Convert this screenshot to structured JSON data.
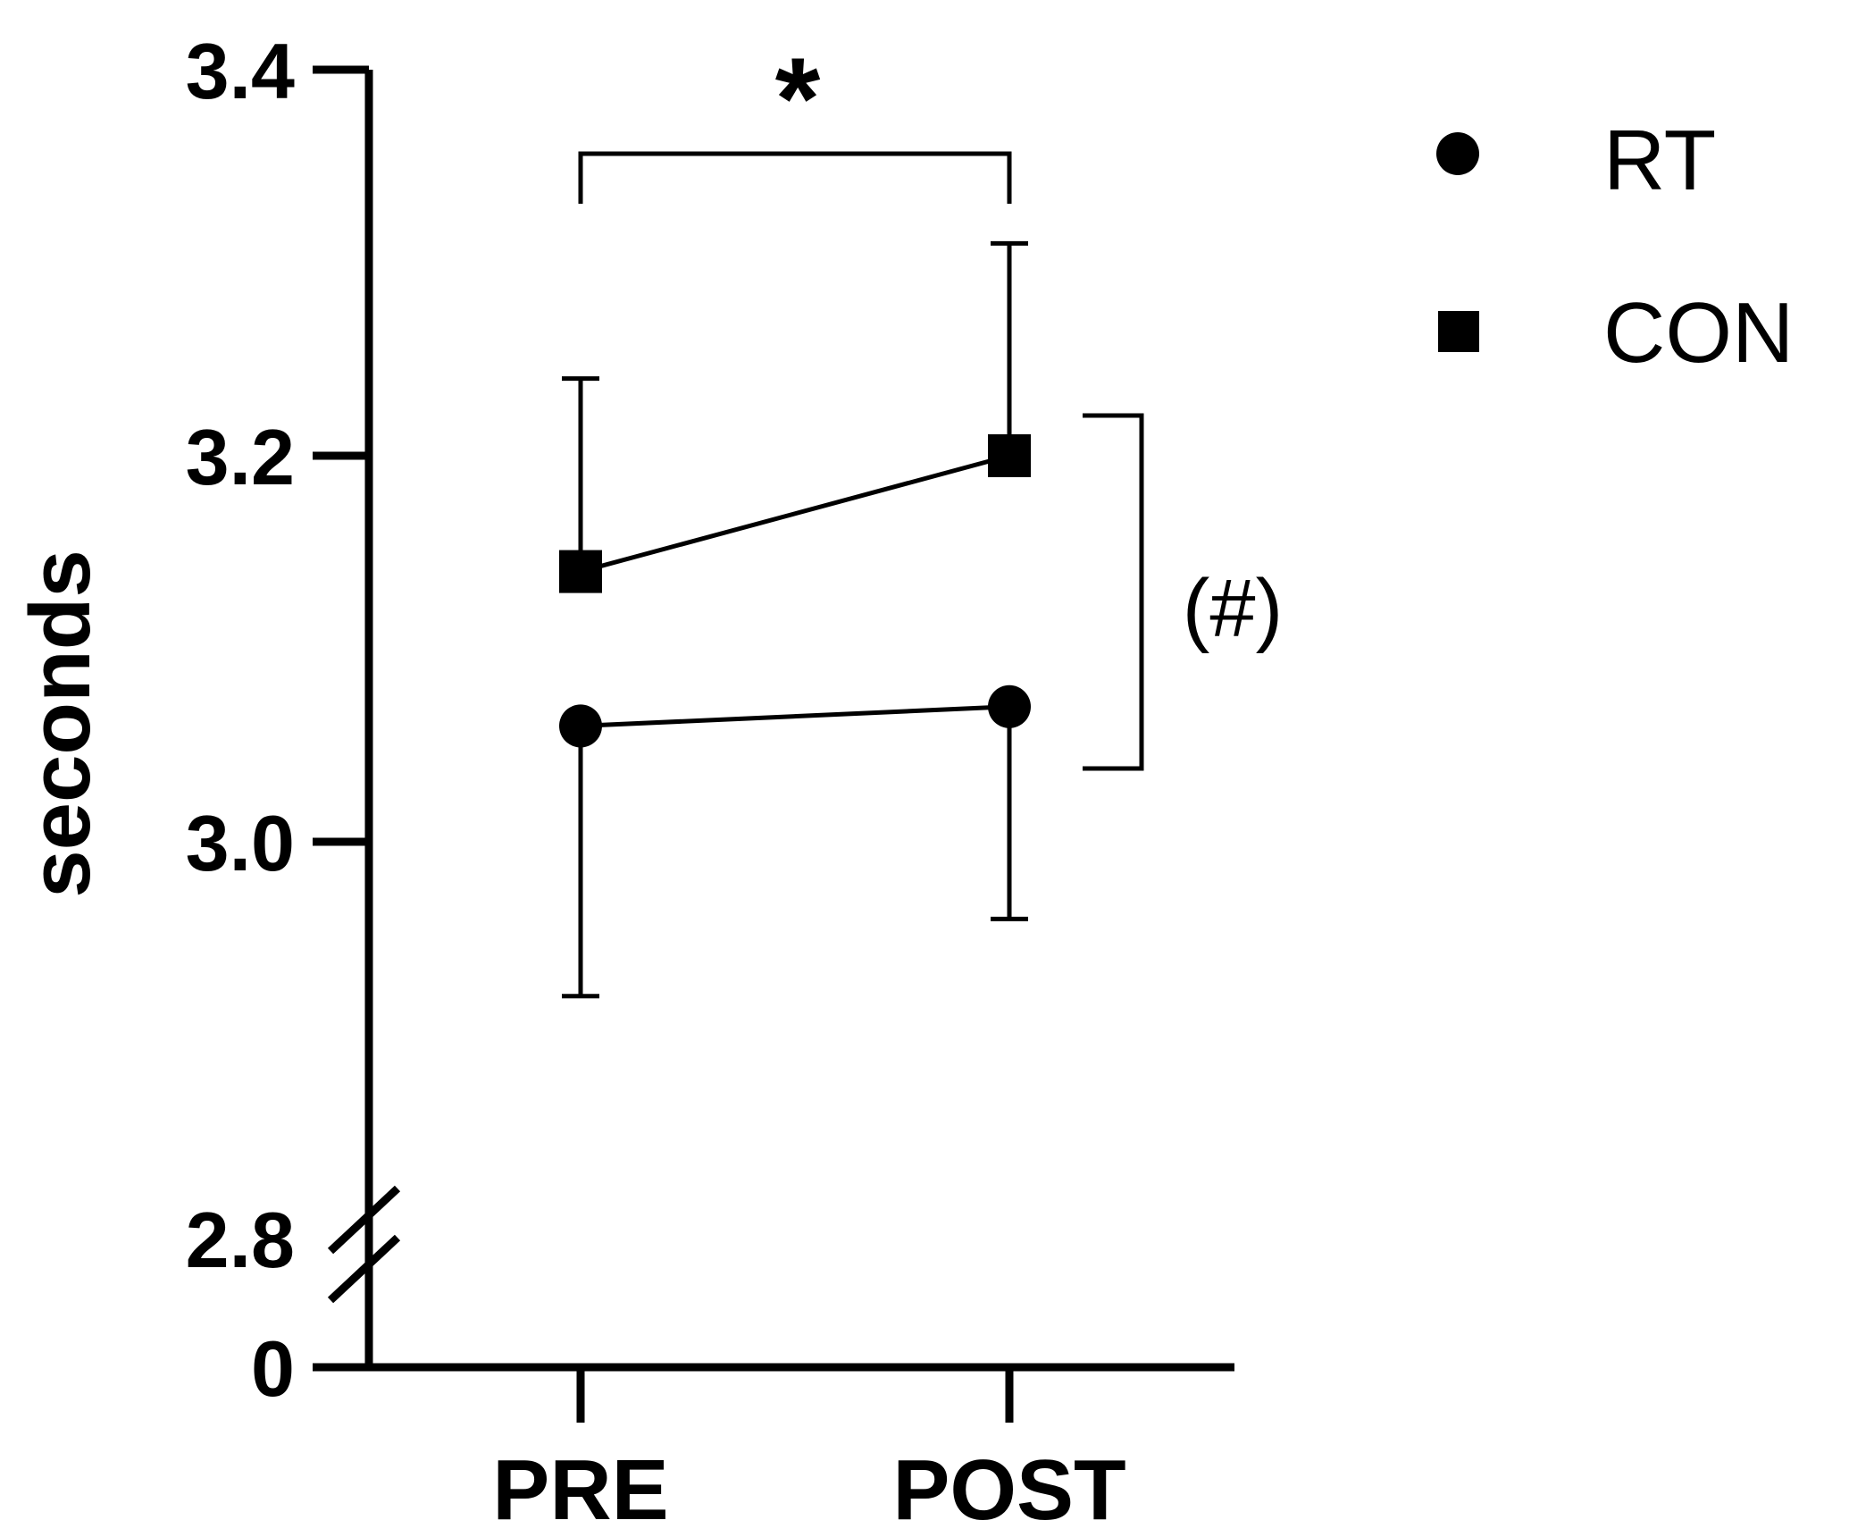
{
  "chart_data": {
    "type": "line",
    "title": "",
    "xlabel": "",
    "ylabel": "seconds",
    "categories": [
      "PRE",
      "POST"
    ],
    "y_ticks": [
      "3.4",
      "3.2",
      "3.0",
      "2.8",
      "0"
    ],
    "ylim_upper_segment": [
      2.8,
      3.4
    ],
    "axis_break": true,
    "grid": false,
    "legend_position": "top-right",
    "series": [
      {
        "name": "RT",
        "marker": "circle",
        "values": [
          3.06,
          3.07
        ],
        "error_low": [
          2.92,
          2.96
        ],
        "error_high": [
          null,
          null
        ]
      },
      {
        "name": "CON",
        "marker": "square",
        "values": [
          3.14,
          3.2
        ],
        "error_low": [
          null,
          null
        ],
        "error_high": [
          3.24,
          3.31
        ]
      }
    ],
    "annotations": {
      "time_effect": "*",
      "group_effect": "(#)"
    },
    "colors": {
      "line": "#000000",
      "background": "#ffffff"
    }
  }
}
